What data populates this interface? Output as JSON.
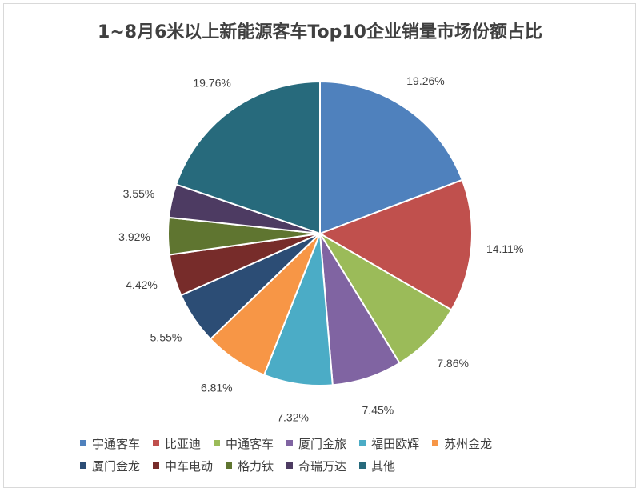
{
  "chart_data": {
    "type": "pie",
    "title": "1~8月6米以上新能源客车Top10企业销量市场份额占比",
    "categories": [
      "宇通客车",
      "比亚迪",
      "中通客车",
      "厦门金旅",
      "福田欧辉",
      "苏州金龙",
      "厦门金龙",
      "中车电动",
      "格力钛",
      "奇瑞万达",
      "其他"
    ],
    "values": [
      19.26,
      14.11,
      7.86,
      7.45,
      7.32,
      6.81,
      5.55,
      4.42,
      3.92,
      3.55,
      19.76
    ],
    "value_labels": [
      "19.26%",
      "14.11%",
      "7.86%",
      "7.45%",
      "7.32%",
      "6.81%",
      "5.55%",
      "4.42%",
      "3.92%",
      "3.55%",
      "19.76%"
    ],
    "colors": [
      "#4f81bd",
      "#c0504d",
      "#9bbb59",
      "#8064a2",
      "#4bacc6",
      "#f79646",
      "#2c4d75",
      "#772c2a",
      "#5f7530",
      "#4d3b62",
      "#276a7c"
    ],
    "start_angle": "12 o'clock",
    "direction": "clockwise",
    "legend_position": "bottom"
  }
}
